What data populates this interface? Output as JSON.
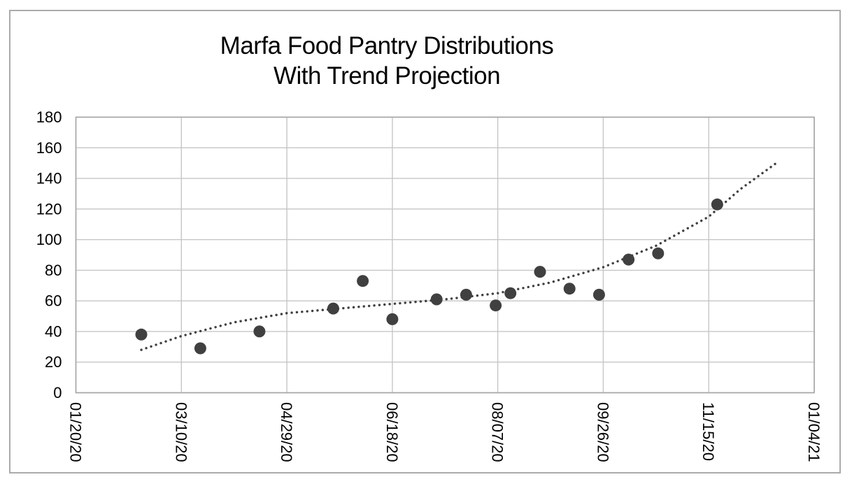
{
  "figure": {
    "title_line1": "Marfa Food Pantry Distributions",
    "title_line2": "With Trend Projection"
  },
  "chart_data": {
    "type": "scatter",
    "title": "Marfa Food Pantry Distributions",
    "subtitle": "With Trend Projection",
    "legend": "none",
    "grid": "both",
    "x_axis": {
      "type": "date",
      "tick_labels": [
        "01/20/20",
        "03/10/20",
        "04/29/20",
        "06/18/20",
        "08/07/20",
        "09/26/20",
        "11/15/20",
        "01/04/21"
      ],
      "tick_days": [
        0,
        50,
        100,
        150,
        200,
        250,
        300,
        350
      ],
      "range_days": [
        0,
        350
      ],
      "label_rotation_deg": 90
    },
    "y_axis": {
      "ticks": [
        0,
        20,
        40,
        60,
        80,
        100,
        120,
        140,
        160,
        180
      ],
      "range": [
        0,
        180
      ]
    },
    "series": [
      {
        "name": "Distributions",
        "marker": "circle",
        "color": "#404040",
        "points": [
          {
            "date": "02/20/20",
            "day": 31,
            "value": 38
          },
          {
            "date": "03/19/20",
            "day": 59,
            "value": 29
          },
          {
            "date": "04/16/20",
            "day": 87,
            "value": 40
          },
          {
            "date": "05/21/20",
            "day": 122,
            "value": 55
          },
          {
            "date": "06/04/20",
            "day": 136,
            "value": 73
          },
          {
            "date": "06/18/20",
            "day": 150,
            "value": 48
          },
          {
            "date": "07/09/20",
            "day": 171,
            "value": 61
          },
          {
            "date": "07/23/20",
            "day": 185,
            "value": 64
          },
          {
            "date": "08/06/20",
            "day": 199,
            "value": 57
          },
          {
            "date": "08/13/20",
            "day": 206,
            "value": 65
          },
          {
            "date": "08/27/20",
            "day": 220,
            "value": 79
          },
          {
            "date": "09/10/20",
            "day": 234,
            "value": 68
          },
          {
            "date": "09/24/20",
            "day": 248,
            "value": 64
          },
          {
            "date": "10/08/20",
            "day": 262,
            "value": 87
          },
          {
            "date": "10/22/20",
            "day": 276,
            "value": 91
          },
          {
            "date": "11/19/20",
            "day": 304,
            "value": 123
          }
        ]
      }
    ],
    "trend": {
      "name": "Trend Projection",
      "style": "dotted",
      "color": "#404040",
      "samples": [
        {
          "day": 31,
          "value": 28
        },
        {
          "day": 50,
          "value": 37
        },
        {
          "day": 75,
          "value": 46
        },
        {
          "day": 100,
          "value": 52
        },
        {
          "day": 125,
          "value": 55
        },
        {
          "day": 150,
          "value": 58
        },
        {
          "day": 175,
          "value": 61
        },
        {
          "day": 200,
          "value": 65
        },
        {
          "day": 225,
          "value": 72
        },
        {
          "day": 250,
          "value": 82
        },
        {
          "day": 275,
          "value": 96
        },
        {
          "day": 300,
          "value": 115
        },
        {
          "day": 315,
          "value": 133
        },
        {
          "day": 333,
          "value": 151
        }
      ]
    },
    "colors": {
      "point": "#404040",
      "trend": "#404040",
      "gridline": "#c6c6c6",
      "plot_border": "#a6a6a6",
      "outer_border": "#ababab",
      "text": "#000000"
    }
  }
}
